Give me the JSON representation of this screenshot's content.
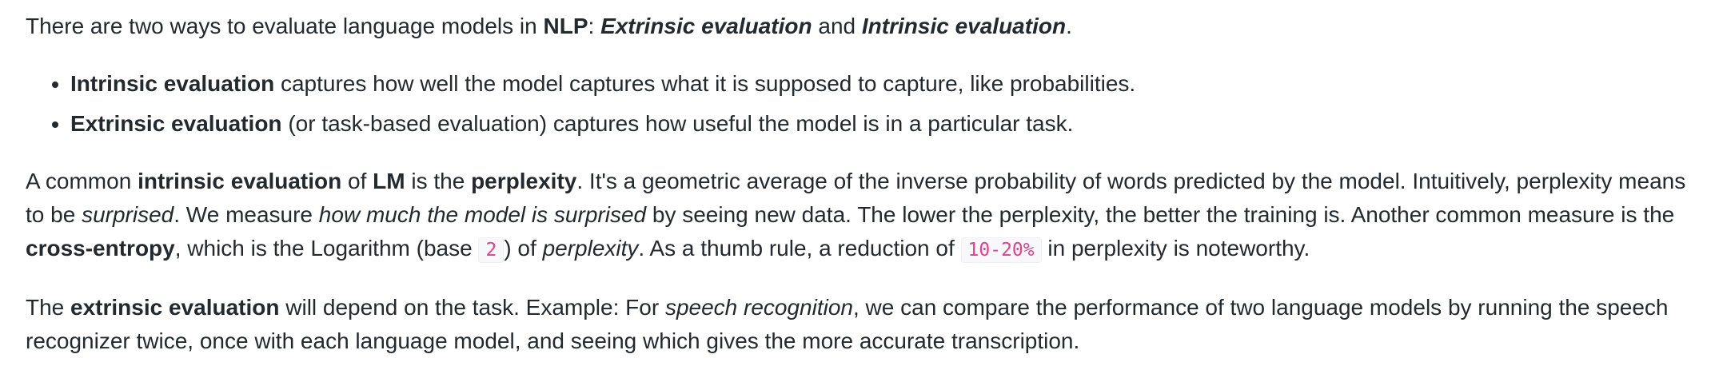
{
  "intro": {
    "t1": "There are two ways to evaluate language models in ",
    "nlp": "NLP",
    "t2": ": ",
    "extrinsic": "Extrinsic evaluation",
    "t3": " and ",
    "intrinsic": "Intrinsic evaluation",
    "t4": "."
  },
  "bullets": [
    {
      "term": "Intrinsic evaluation",
      "text": " captures how well the model captures what it is supposed to capture, like probabilities."
    },
    {
      "term": "Extrinsic evaluation",
      "text": " (or task-based evaluation) captures how useful the model is in a particular task."
    }
  ],
  "perplexity_paragraph": {
    "t1": "A common ",
    "b1": "intrinsic evaluation",
    "t2": " of ",
    "b2": "LM",
    "t3": " is the ",
    "b3": "perplexity",
    "t4": ". It's a geometric average of the inverse probability of words predicted by the model. Intuitively, perplexity means to be ",
    "i1": "surprised",
    "t5": ". We measure ",
    "i2": "how much the model is surprised",
    "t6": " by seeing new data. The lower the perplexity, the better the training is. Another common measure is the ",
    "b4": "cross-entropy",
    "t7": ", which is the Logarithm (base ",
    "code1": "2",
    "t8": ") of ",
    "i3": "perplexity",
    "t9": ". As a thumb rule, a reduction of ",
    "code2": "10-20%",
    "t10": " in perplexity is noteworthy."
  },
  "extrinsic_paragraph": {
    "t1": "The ",
    "b1": "extrinsic evaluation",
    "t2": " will depend on the task. Example: For ",
    "i1": "speech recognition",
    "t3": ", we can compare the performance of two language models by running the speech recognizer twice, once with each language model, and seeing which gives the more accurate transcription."
  }
}
